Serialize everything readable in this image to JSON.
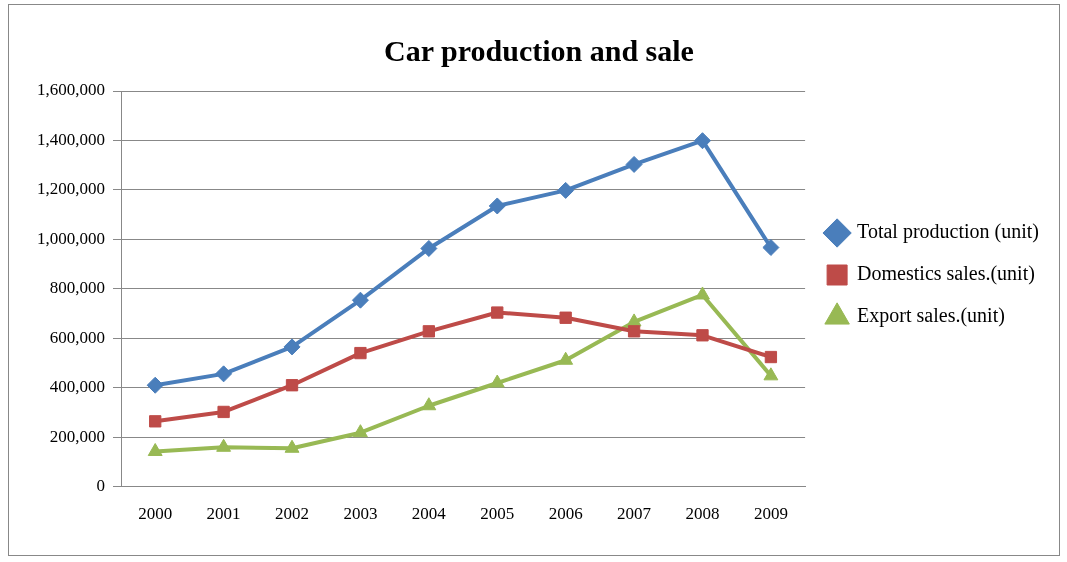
{
  "chart_data": {
    "type": "line",
    "title": "Car production and sale",
    "categories": [
      "2000",
      "2001",
      "2002",
      "2003",
      "2004",
      "2005",
      "2006",
      "2007",
      "2008",
      "2009"
    ],
    "series": [
      {
        "name": "Total production (unit)",
        "color": "#4a7ebb",
        "marker": "diamond",
        "values": [
          410000,
          456000,
          565000,
          754000,
          963000,
          1135000,
          1198000,
          1303000,
          1399000,
          967000
        ]
      },
      {
        "name": "Domestics sales.(unit)",
        "color": "#be4b48",
        "marker": "square",
        "values": [
          264000,
          302000,
          410000,
          540000,
          628000,
          704000,
          683000,
          628000,
          612000,
          524000
        ]
      },
      {
        "name": "Export sales.(unit)",
        "color": "#98b954",
        "marker": "triangle",
        "values": [
          142000,
          159000,
          155000,
          218000,
          327000,
          419000,
          511000,
          666000,
          775000,
          448000
        ]
      }
    ],
    "ylim": [
      0,
      1600000
    ],
    "yticks": [
      0,
      {
        "value": 200000,
        "label": "200,000"
      },
      {
        "value": 400000,
        "label": "400,000"
      },
      {
        "value": 600000,
        "label": "600,000"
      },
      {
        "value": 800000,
        "label": "800,000"
      },
      {
        "value": 1000000,
        "label": "1,000,000"
      },
      {
        "value": 1200000,
        "label": "1,200,000"
      },
      {
        "value": 1400000,
        "label": "1,400,000"
      },
      {
        "value": 1600000,
        "label": "1,600,000"
      }
    ],
    "grid": "y",
    "legend": "right",
    "line_style": "solid"
  }
}
